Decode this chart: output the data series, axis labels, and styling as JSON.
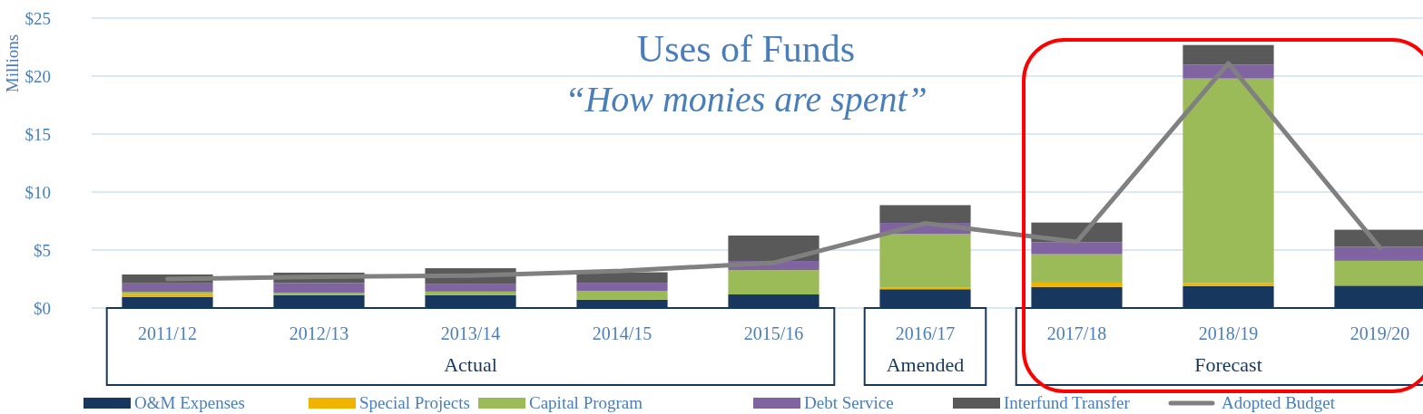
{
  "chart_data": {
    "type": "bar",
    "stacked": true,
    "title": "Uses of Funds",
    "subtitle": "“How monies are spent”",
    "ylabel": "Millions",
    "categories": [
      "2011/12",
      "2012/13",
      "2013/14",
      "2014/15",
      "2015/16",
      "2016/17",
      "2017/18",
      "2018/19",
      "2019/20"
    ],
    "series": [
      {
        "name": "O&M Expenses",
        "color": "#17375e",
        "values": [
          0.96,
          1.12,
          1.12,
          0.72,
          1.17,
          1.62,
          1.82,
          1.9,
          1.93
        ]
      },
      {
        "name": "Special Projects",
        "color": "#f0b400",
        "values": [
          0.26,
          0.03,
          0.02,
          null,
          null,
          0.12,
          0.37,
          0.26,
          null
        ]
      },
      {
        "name": "Capital Program",
        "color": "#9bbb59",
        "values": [
          0.18,
          0.18,
          0.28,
          0.76,
          2.1,
          4.63,
          2.45,
          17.63,
          2.14
        ]
      },
      {
        "name": "Debt Service",
        "color": "#8064a2",
        "values": [
          0.73,
          0.83,
          0.68,
          0.7,
          0.79,
          0.97,
          1.04,
          1.2,
          1.2
        ]
      },
      {
        "name": "Interfund Transfer",
        "color": "#595959",
        "values": [
          0.76,
          0.89,
          1.33,
          0.9,
          2.19,
          1.53,
          1.69,
          1.69,
          1.48
        ]
      },
      {
        "name": "Adopted Budget",
        "type": "line",
        "color": "#808080",
        "values": [
          2.5,
          2.7,
          2.8,
          3.2,
          3.9,
          7.3,
          5.7,
          21.1,
          5.2
        ]
      }
    ],
    "ylim": [
      0,
      25
    ],
    "yticks": [
      {
        "value": 0,
        "label": "$0"
      },
      {
        "value": 5,
        "label": "$5"
      },
      {
        "value": 10,
        "label": "$10"
      },
      {
        "value": 15,
        "label": "$15"
      },
      {
        "value": 20,
        "label": "$20"
      },
      {
        "value": 25,
        "label": "$25"
      }
    ],
    "grid": "y",
    "legend": "bottom",
    "annotations": [
      "Actual",
      "Amended",
      "Forecast"
    ]
  }
}
